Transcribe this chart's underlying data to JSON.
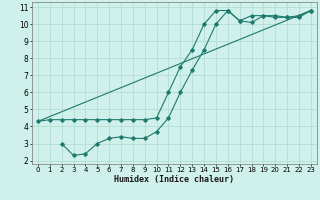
{
  "xlabel": "Humidex (Indice chaleur)",
  "xlim": [
    -0.5,
    23.5
  ],
  "ylim": [
    1.8,
    11.3
  ],
  "xticks": [
    0,
    1,
    2,
    3,
    4,
    5,
    6,
    7,
    8,
    9,
    10,
    11,
    12,
    13,
    14,
    15,
    16,
    17,
    18,
    19,
    20,
    21,
    22,
    23
  ],
  "yticks": [
    2,
    3,
    4,
    5,
    6,
    7,
    8,
    9,
    10,
    11
  ],
  "bg_color": "#cff0eb",
  "grid_color": "#b0d8d2",
  "line_color": "#1e7a6d",
  "line1_x": [
    0,
    1,
    2,
    3,
    4,
    5,
    6,
    7,
    8,
    9,
    10,
    11,
    12,
    13,
    14,
    15,
    16,
    17,
    18,
    19,
    20,
    21,
    22,
    23
  ],
  "line1_y": [
    4.3,
    4.4,
    4.4,
    4.4,
    4.4,
    4.4,
    4.4,
    4.4,
    4.4,
    4.4,
    4.5,
    6.0,
    7.5,
    8.5,
    10.0,
    10.8,
    10.8,
    10.2,
    10.5,
    10.5,
    10.4,
    10.4,
    10.5,
    10.8
  ],
  "line2_x": [
    2,
    3,
    4,
    5,
    6,
    7,
    8,
    9,
    10,
    11,
    12,
    13,
    14,
    15,
    16,
    17,
    18,
    19,
    20,
    21,
    22,
    23
  ],
  "line2_y": [
    3.0,
    2.3,
    2.4,
    3.0,
    3.3,
    3.4,
    3.3,
    3.3,
    3.7,
    4.5,
    6.0,
    7.3,
    8.5,
    10.0,
    10.8,
    10.2,
    10.1,
    10.5,
    10.5,
    10.4,
    10.4,
    10.8
  ],
  "line3_x": [
    0,
    23
  ],
  "line3_y": [
    4.3,
    10.8
  ]
}
